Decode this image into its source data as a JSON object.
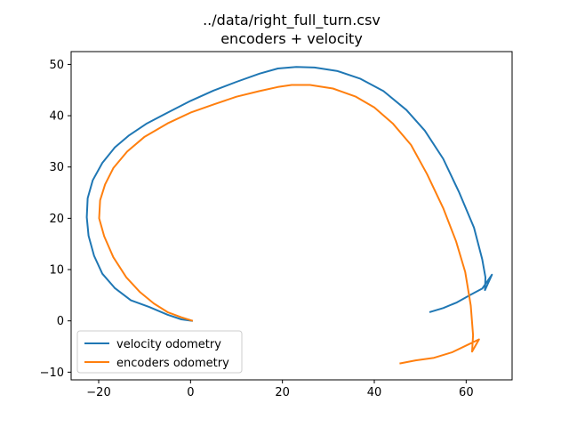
{
  "chart_data": {
    "type": "line",
    "title": "../data/right_full_turn.csv",
    "subtitle": "encoders + velocity",
    "xlabel": "",
    "ylabel": "",
    "xlim": [
      -26,
      70
    ],
    "ylim": [
      -11.5,
      52.5
    ],
    "xticks": [
      -20,
      0,
      20,
      40,
      60
    ],
    "yticks": [
      -10,
      0,
      10,
      20,
      30,
      40,
      50
    ],
    "grid": false,
    "legend_position": "lower-left",
    "series": [
      {
        "name": "velocity odometry",
        "color": "#1f77b4",
        "points": [
          [
            0.5,
            0.0
          ],
          [
            -2,
            0.3
          ],
          [
            -5,
            1.2
          ],
          [
            -9,
            2.7
          ],
          [
            -13,
            4.0
          ],
          [
            -16.5,
            6.4
          ],
          [
            -19.2,
            9.2
          ],
          [
            -21.0,
            12.7
          ],
          [
            -22.2,
            16.6
          ],
          [
            -22.6,
            20.2
          ],
          [
            -22.4,
            23.9
          ],
          [
            -21.3,
            27.4
          ],
          [
            -19.2,
            30.8
          ],
          [
            -16.5,
            33.8
          ],
          [
            -13.5,
            36.1
          ],
          [
            -9.5,
            38.5
          ],
          [
            -5,
            40.6
          ],
          [
            0,
            42.9
          ],
          [
            5,
            44.9
          ],
          [
            10,
            46.6
          ],
          [
            15,
            48.2
          ],
          [
            19,
            49.2
          ],
          [
            23,
            49.5
          ],
          [
            27,
            49.4
          ],
          [
            32,
            48.7
          ],
          [
            37,
            47.2
          ],
          [
            42,
            44.8
          ],
          [
            47,
            41.1
          ],
          [
            51,
            37.1
          ],
          [
            55,
            31.6
          ],
          [
            58.5,
            25.0
          ],
          [
            61.7,
            18.2
          ],
          [
            63.5,
            12.0
          ],
          [
            64.2,
            8.5
          ],
          [
            64.1,
            6.0
          ],
          [
            65.6,
            9.0
          ],
          [
            63.5,
            6.3
          ],
          [
            61,
            5.1
          ],
          [
            58,
            3.6
          ],
          [
            55,
            2.5
          ],
          [
            52,
            1.7
          ]
        ]
      },
      {
        "name": "encoders odometry",
        "color": "#ff7f0e",
        "points": [
          [
            0.5,
            0.0
          ],
          [
            -2,
            0.7
          ],
          [
            -5,
            1.7
          ],
          [
            -8,
            3.4
          ],
          [
            -11,
            5.6
          ],
          [
            -14,
            8.5
          ],
          [
            -16.8,
            12.4
          ],
          [
            -18.8,
            16.5
          ],
          [
            -19.9,
            20.0
          ],
          [
            -19.7,
            23.5
          ],
          [
            -18.6,
            26.6
          ],
          [
            -16.8,
            29.8
          ],
          [
            -13.8,
            33.0
          ],
          [
            -10,
            35.9
          ],
          [
            -5,
            38.5
          ],
          [
            0,
            40.6
          ],
          [
            5,
            42.2
          ],
          [
            10,
            43.7
          ],
          [
            15,
            44.8
          ],
          [
            19,
            45.6
          ],
          [
            22,
            46.0
          ],
          [
            26,
            46.0
          ],
          [
            31,
            45.3
          ],
          [
            36,
            43.7
          ],
          [
            40,
            41.6
          ],
          [
            44,
            38.5
          ],
          [
            48,
            34.3
          ],
          [
            51.5,
            28.6
          ],
          [
            55,
            22.0
          ],
          [
            57.8,
            15.5
          ],
          [
            59.8,
            9.5
          ],
          [
            61.0,
            3.0
          ],
          [
            61.5,
            -2.8
          ],
          [
            61.3,
            -6.0
          ],
          [
            62.8,
            -3.6
          ],
          [
            60.5,
            -4.6
          ],
          [
            57,
            -6.1
          ],
          [
            53,
            -7.2
          ],
          [
            49,
            -7.7
          ],
          [
            45.5,
            -8.3
          ]
        ]
      }
    ]
  }
}
